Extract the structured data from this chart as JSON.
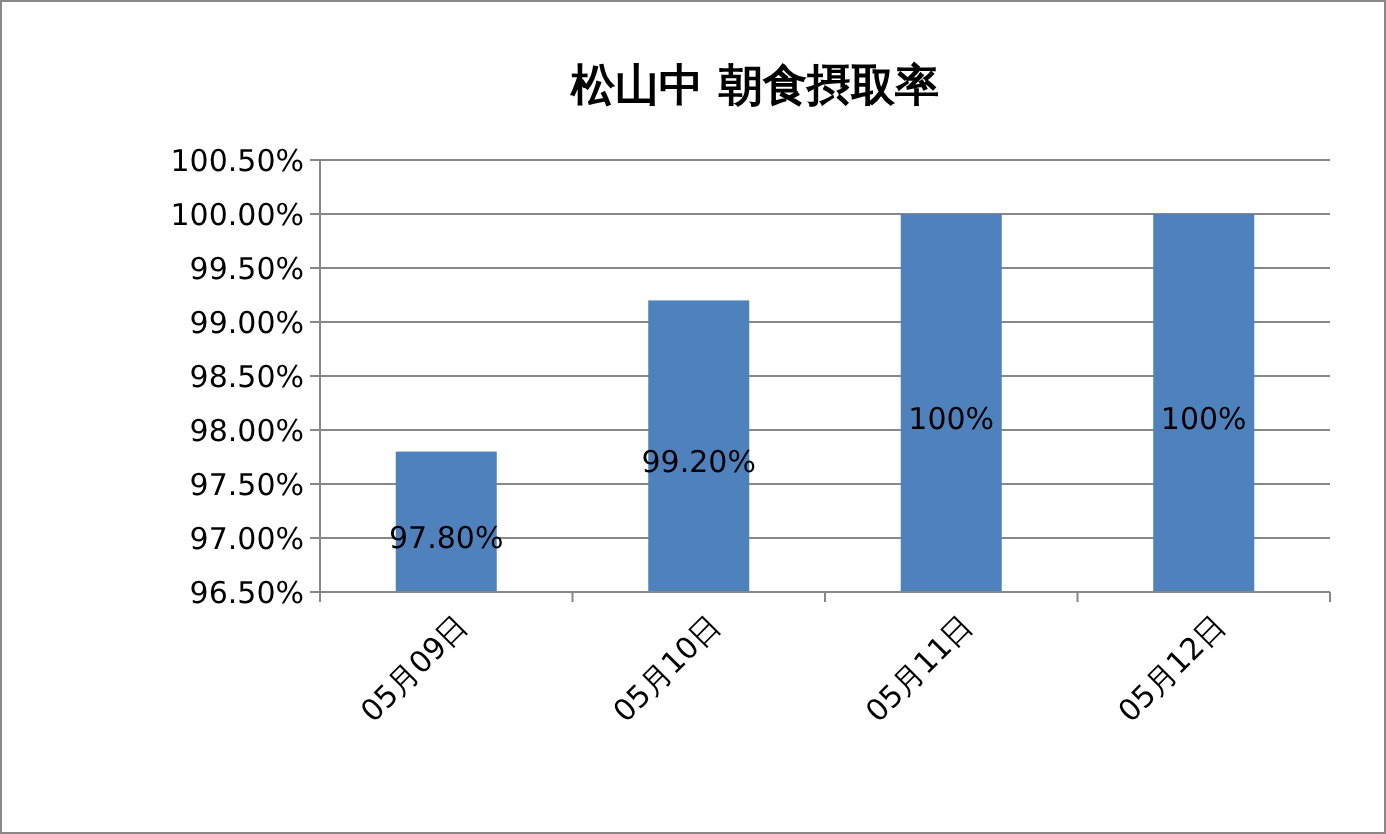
{
  "chart_data": {
    "type": "bar",
    "title": "松山中 朝食摂取率",
    "categories": [
      "05月09日",
      "05月10日",
      "05月11日",
      "05月12日"
    ],
    "values": [
      97.8,
      99.2,
      100,
      100
    ],
    "value_labels": [
      "97.80%",
      "99.20%",
      "100%",
      "100%"
    ],
    "color": "#4f81bd",
    "ylim": [
      96.5,
      100.5
    ],
    "yticks": [
      {
        "value": 96.5,
        "label": "96.50%"
      },
      {
        "value": 97,
        "label": "97.00%"
      },
      {
        "value": 97.5,
        "label": "97.50%"
      },
      {
        "value": 98,
        "label": "98.00%"
      },
      {
        "value": 98.5,
        "label": "98.50%"
      },
      {
        "value": 99,
        "label": "99.00%"
      },
      {
        "value": 99.5,
        "label": "99.50%"
      },
      {
        "value": 100,
        "label": "100.00%"
      },
      {
        "value": 100.5,
        "label": "100.50%"
      }
    ],
    "grid": "y"
  }
}
